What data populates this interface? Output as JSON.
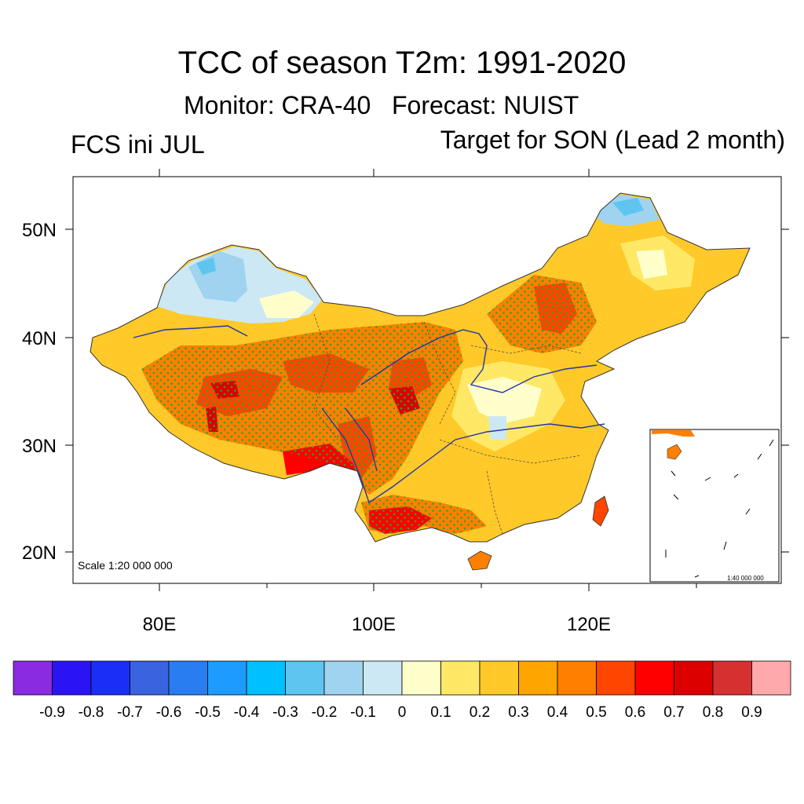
{
  "title": "TCC of season T2m: 1991-2020",
  "subtitle": "Monitor: CRA-40   Forecast: NUIST",
  "left_label": "FCS ini JUL",
  "right_label": "Target for SON (Lead 2 month)",
  "scale_label": "Scale 1:20 000 000",
  "inset_scale_label": "1:40 000 000",
  "axes": {
    "y_ticks": [
      "50N",
      "40N",
      "30N",
      "20N"
    ],
    "x_ticks": [
      "80E",
      "100E",
      "120E"
    ]
  },
  "colorbar": {
    "colors": [
      "#8a2be2",
      "#2a14f5",
      "#1a2ef5",
      "#3a63e0",
      "#2a7df0",
      "#1e9bff",
      "#00c0ff",
      "#5ec5f0",
      "#9fd3f0",
      "#cde8f5",
      "#ffffcc",
      "#ffe866",
      "#ffc929",
      "#ffa500",
      "#ff7f00",
      "#ff4500",
      "#ff0000",
      "#dc0000",
      "#d73030",
      "#ffaaaa"
    ],
    "labels": [
      "-0.9",
      "-0.8",
      "-0.7",
      "-0.6",
      "-0.5",
      "-0.4",
      "-0.3",
      "-0.2",
      "-0.1",
      "0",
      "0.1",
      "0.2",
      "0.3",
      "0.4",
      "0.5",
      "0.6",
      "0.7",
      "0.8",
      "0.9"
    ]
  },
  "stipple_color": "#22aa22"
}
